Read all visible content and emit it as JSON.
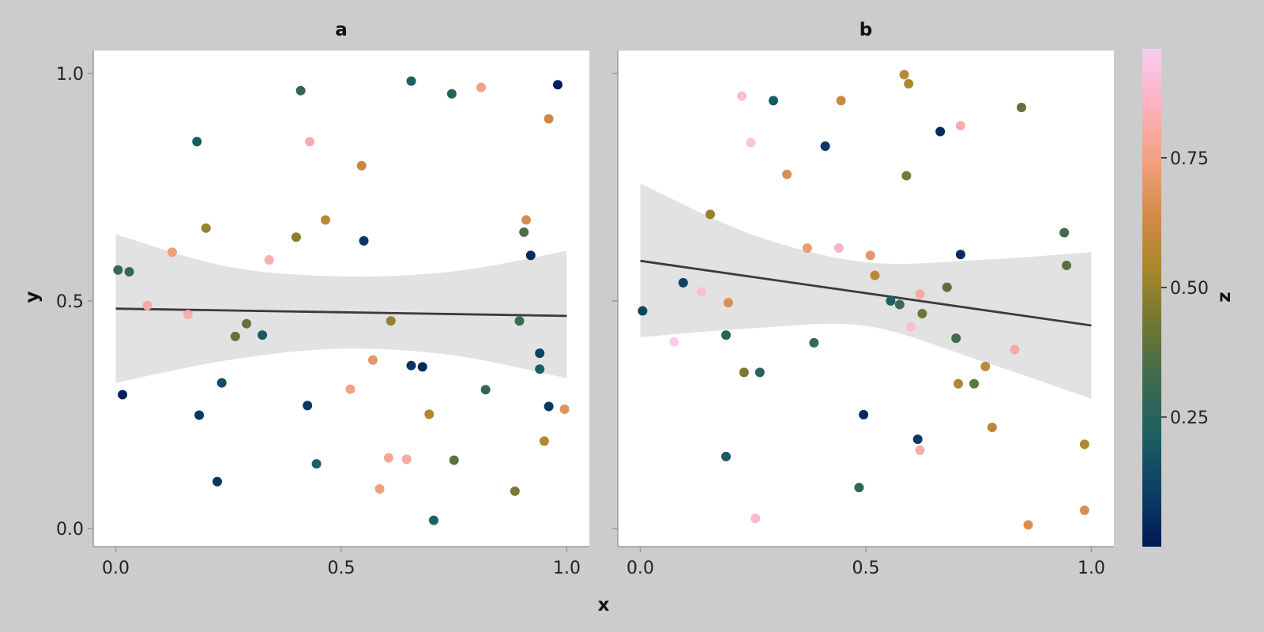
{
  "chart_data": {
    "type": "scatter",
    "xlabel": "x",
    "ylabel": "y",
    "xlim": [
      -0.05,
      1.05
    ],
    "ylim": [
      -0.04,
      1.05
    ],
    "x_ticks": [
      "0.0",
      "0.5",
      "1.0"
    ],
    "y_ticks": [
      "0.0",
      "0.5",
      "1.0"
    ],
    "grid": false,
    "panels": [
      {
        "title": "a",
        "fit": {
          "x": [
            0,
            1
          ],
          "y": [
            0.483,
            0.467
          ]
        },
        "ribbon": {
          "x": [
            0,
            0.25,
            0.5,
            0.75,
            1.0
          ],
          "lower": [
            0.32,
            0.37,
            0.395,
            0.38,
            0.33
          ],
          "upper": [
            0.646,
            0.575,
            0.554,
            0.565,
            0.61
          ]
        },
        "points": [
          {
            "x": 0.005,
            "y": 0.568,
            "z": 0.3
          },
          {
            "x": 0.03,
            "y": 0.564,
            "z": 0.3
          },
          {
            "x": 0.015,
            "y": 0.294,
            "z": 0.02
          },
          {
            "x": 0.07,
            "y": 0.49,
            "z": 0.8
          },
          {
            "x": 0.125,
            "y": 0.607,
            "z": 0.74
          },
          {
            "x": 0.16,
            "y": 0.47,
            "z": 0.82
          },
          {
            "x": 0.18,
            "y": 0.85,
            "z": 0.2
          },
          {
            "x": 0.185,
            "y": 0.249,
            "z": 0.08
          },
          {
            "x": 0.2,
            "y": 0.66,
            "z": 0.5
          },
          {
            "x": 0.225,
            "y": 0.103,
            "z": 0.08
          },
          {
            "x": 0.235,
            "y": 0.32,
            "z": 0.15
          },
          {
            "x": 0.265,
            "y": 0.422,
            "z": 0.4
          },
          {
            "x": 0.29,
            "y": 0.45,
            "z": 0.4
          },
          {
            "x": 0.325,
            "y": 0.425,
            "z": 0.2
          },
          {
            "x": 0.34,
            "y": 0.59,
            "z": 0.82
          },
          {
            "x": 0.4,
            "y": 0.64,
            "z": 0.48
          },
          {
            "x": 0.41,
            "y": 0.962,
            "z": 0.28
          },
          {
            "x": 0.425,
            "y": 0.27,
            "z": 0.08
          },
          {
            "x": 0.43,
            "y": 0.85,
            "z": 0.82
          },
          {
            "x": 0.445,
            "y": 0.142,
            "z": 0.22
          },
          {
            "x": 0.465,
            "y": 0.678,
            "z": 0.58
          },
          {
            "x": 0.52,
            "y": 0.306,
            "z": 0.75
          },
          {
            "x": 0.545,
            "y": 0.797,
            "z": 0.6
          },
          {
            "x": 0.55,
            "y": 0.632,
            "z": 0.08
          },
          {
            "x": 0.57,
            "y": 0.37,
            "z": 0.7
          },
          {
            "x": 0.585,
            "y": 0.087,
            "z": 0.74
          },
          {
            "x": 0.605,
            "y": 0.155,
            "z": 0.78
          },
          {
            "x": 0.61,
            "y": 0.456,
            "z": 0.5
          },
          {
            "x": 0.645,
            "y": 0.152,
            "z": 0.8
          },
          {
            "x": 0.655,
            "y": 0.983,
            "z": 0.22
          },
          {
            "x": 0.655,
            "y": 0.358,
            "z": 0.08
          },
          {
            "x": 0.68,
            "y": 0.355,
            "z": 0.04
          },
          {
            "x": 0.695,
            "y": 0.251,
            "z": 0.55
          },
          {
            "x": 0.705,
            "y": 0.018,
            "z": 0.22
          },
          {
            "x": 0.745,
            "y": 0.955,
            "z": 0.25
          },
          {
            "x": 0.75,
            "y": 0.15,
            "z": 0.38
          },
          {
            "x": 0.81,
            "y": 0.969,
            "z": 0.75
          },
          {
            "x": 0.82,
            "y": 0.305,
            "z": 0.28
          },
          {
            "x": 0.885,
            "y": 0.082,
            "z": 0.45
          },
          {
            "x": 0.895,
            "y": 0.456,
            "z": 0.32
          },
          {
            "x": 0.905,
            "y": 0.651,
            "z": 0.35
          },
          {
            "x": 0.91,
            "y": 0.678,
            "z": 0.65
          },
          {
            "x": 0.92,
            "y": 0.6,
            "z": 0.05
          },
          {
            "x": 0.94,
            "y": 0.385,
            "z": 0.12
          },
          {
            "x": 0.94,
            "y": 0.35,
            "z": 0.22
          },
          {
            "x": 0.95,
            "y": 0.192,
            "z": 0.55
          },
          {
            "x": 0.96,
            "y": 0.9,
            "z": 0.62
          },
          {
            "x": 0.96,
            "y": 0.268,
            "z": 0.08
          },
          {
            "x": 0.98,
            "y": 0.975,
            "z": 0.02
          },
          {
            "x": 0.995,
            "y": 0.262,
            "z": 0.68
          }
        ]
      },
      {
        "title": "b",
        "fit": {
          "x": [
            0,
            1
          ],
          "y": [
            0.588,
            0.446
          ]
        },
        "ribbon": {
          "x": [
            0,
            0.25,
            0.5,
            0.75,
            1.0
          ],
          "lower": [
            0.42,
            0.44,
            0.445,
            0.37,
            0.285
          ],
          "upper": [
            0.758,
            0.645,
            0.585,
            0.59,
            0.607
          ]
        },
        "points": [
          {
            "x": 0.005,
            "y": 0.478,
            "z": 0.12
          },
          {
            "x": 0.075,
            "y": 0.41,
            "z": 0.95
          },
          {
            "x": 0.095,
            "y": 0.54,
            "z": 0.12
          },
          {
            "x": 0.135,
            "y": 0.52,
            "z": 0.9
          },
          {
            "x": 0.155,
            "y": 0.69,
            "z": 0.5
          },
          {
            "x": 0.19,
            "y": 0.425,
            "z": 0.25
          },
          {
            "x": 0.19,
            "y": 0.158,
            "z": 0.2
          },
          {
            "x": 0.195,
            "y": 0.496,
            "z": 0.66
          },
          {
            "x": 0.225,
            "y": 0.95,
            "z": 0.9
          },
          {
            "x": 0.23,
            "y": 0.343,
            "z": 0.45
          },
          {
            "x": 0.245,
            "y": 0.848,
            "z": 0.92
          },
          {
            "x": 0.255,
            "y": 0.022,
            "z": 0.88
          },
          {
            "x": 0.265,
            "y": 0.343,
            "z": 0.25
          },
          {
            "x": 0.295,
            "y": 0.94,
            "z": 0.2
          },
          {
            "x": 0.325,
            "y": 0.778,
            "z": 0.66
          },
          {
            "x": 0.37,
            "y": 0.616,
            "z": 0.72
          },
          {
            "x": 0.385,
            "y": 0.408,
            "z": 0.3
          },
          {
            "x": 0.41,
            "y": 0.84,
            "z": 0.08
          },
          {
            "x": 0.44,
            "y": 0.616,
            "z": 0.86
          },
          {
            "x": 0.445,
            "y": 0.94,
            "z": 0.62
          },
          {
            "x": 0.485,
            "y": 0.09,
            "z": 0.28
          },
          {
            "x": 0.495,
            "y": 0.25,
            "z": 0.05
          },
          {
            "x": 0.51,
            "y": 0.6,
            "z": 0.7
          },
          {
            "x": 0.52,
            "y": 0.556,
            "z": 0.58
          },
          {
            "x": 0.555,
            "y": 0.5,
            "z": 0.22
          },
          {
            "x": 0.575,
            "y": 0.492,
            "z": 0.32
          },
          {
            "x": 0.585,
            "y": 0.997,
            "z": 0.58
          },
          {
            "x": 0.59,
            "y": 0.775,
            "z": 0.45
          },
          {
            "x": 0.595,
            "y": 0.977,
            "z": 0.55
          },
          {
            "x": 0.6,
            "y": 0.443,
            "z": 0.9
          },
          {
            "x": 0.615,
            "y": 0.196,
            "z": 0.08
          },
          {
            "x": 0.62,
            "y": 0.515,
            "z": 0.8
          },
          {
            "x": 0.62,
            "y": 0.172,
            "z": 0.82
          },
          {
            "x": 0.625,
            "y": 0.472,
            "z": 0.42
          },
          {
            "x": 0.665,
            "y": 0.872,
            "z": 0.05
          },
          {
            "x": 0.68,
            "y": 0.53,
            "z": 0.38
          },
          {
            "x": 0.7,
            "y": 0.418,
            "z": 0.32
          },
          {
            "x": 0.705,
            "y": 0.318,
            "z": 0.55
          },
          {
            "x": 0.71,
            "y": 0.602,
            "z": 0.05
          },
          {
            "x": 0.71,
            "y": 0.885,
            "z": 0.82
          },
          {
            "x": 0.74,
            "y": 0.318,
            "z": 0.4
          },
          {
            "x": 0.765,
            "y": 0.356,
            "z": 0.58
          },
          {
            "x": 0.78,
            "y": 0.222,
            "z": 0.58
          },
          {
            "x": 0.83,
            "y": 0.393,
            "z": 0.8
          },
          {
            "x": 0.845,
            "y": 0.925,
            "z": 0.4
          },
          {
            "x": 0.86,
            "y": 0.008,
            "z": 0.66
          },
          {
            "x": 0.94,
            "y": 0.65,
            "z": 0.32
          },
          {
            "x": 0.945,
            "y": 0.578,
            "z": 0.38
          },
          {
            "x": 0.985,
            "y": 0.185,
            "z": 0.55
          },
          {
            "x": 0.985,
            "y": 0.04,
            "z": 0.66
          }
        ]
      }
    ],
    "colorbar": {
      "label": "z",
      "ticks": [
        "0.25",
        "0.50",
        "0.75"
      ],
      "tick_values": [
        0.25,
        0.5,
        0.75
      ],
      "range": [
        0.0,
        0.96
      ],
      "colormap": [
        "#001a57",
        "#0d3f66",
        "#1b5f63",
        "#3c6b4e",
        "#6e7634",
        "#a8862a",
        "#d38b4a",
        "#f3a07f",
        "#fcb2c0",
        "#f8ccf4"
      ]
    },
    "colors": {
      "background": "#cccccc",
      "panel": "#ffffff",
      "ribbon": "#e2e2e2",
      "fit_line": "#3b3b3b",
      "axis": "#999999"
    }
  }
}
